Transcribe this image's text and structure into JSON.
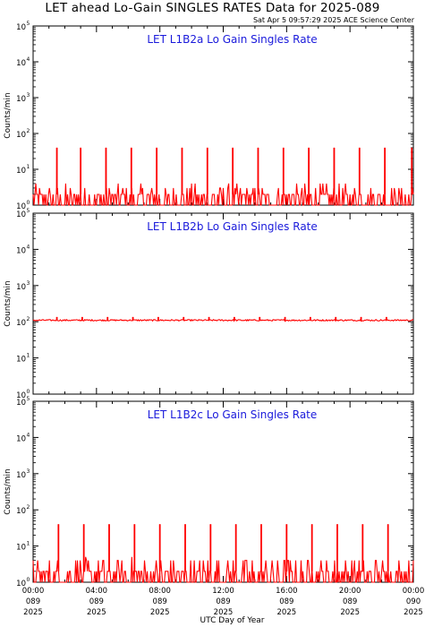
{
  "title": "LET ahead Lo-Gain SINGLES RATES Data for 2025-089",
  "timestamp": "Sat Apr  5 09:57:29 2025 ACE Science Center",
  "colors": {
    "trace": "#ff0000",
    "panel_title": "#1a1adb",
    "axes": "#000000"
  },
  "chart_data": [
    {
      "type": "line",
      "title": "LET L1B2a Lo Gain Singles Rate",
      "ylabel": "Counts/min",
      "xlabel": "",
      "yscale": "log",
      "ylim": [
        1,
        100000
      ],
      "xlim_hours": [
        0,
        24
      ],
      "baseline_range": [
        1,
        3
      ],
      "spike_value": 40,
      "spike_hours": [
        1.5,
        3.0,
        4.6,
        6.2,
        7.8,
        9.4,
        11.0,
        12.6,
        14.2,
        15.8,
        17.4,
        19.0,
        20.6,
        22.2,
        23.9
      ]
    },
    {
      "type": "line",
      "title": "LET L1B2b Lo Gain Singles Rate",
      "ylabel": "Counts/min",
      "xlabel": "",
      "yscale": "log",
      "ylim": [
        1,
        100000
      ],
      "xlim_hours": [
        0,
        24
      ],
      "baseline_range": [
        105,
        115
      ],
      "spike_value": 135,
      "spike_hours": [
        1.5,
        3.1,
        4.7,
        6.3,
        7.9,
        9.5,
        11.1,
        12.7,
        14.3,
        15.9,
        17.5,
        19.1,
        20.7,
        22.3
      ]
    },
    {
      "type": "line",
      "title": "LET L1B2c Lo Gain Singles Rate",
      "ylabel": "Counts/min",
      "xlabel": "UTC Day of Year",
      "yscale": "log",
      "ylim": [
        1,
        100000
      ],
      "xlim_hours": [
        0,
        24
      ],
      "baseline_range": [
        1,
        4
      ],
      "spike_value": 40,
      "spike_hours": [
        1.6,
        3.2,
        4.8,
        6.4,
        8.0,
        9.6,
        11.2,
        12.8,
        14.4,
        16.0,
        17.6,
        19.2,
        20.8,
        22.4
      ]
    }
  ],
  "y_ticks": [
    {
      "base": "10",
      "exp": "0"
    },
    {
      "base": "10",
      "exp": "1"
    },
    {
      "base": "10",
      "exp": "2"
    },
    {
      "base": "10",
      "exp": "3"
    },
    {
      "base": "10",
      "exp": "4"
    },
    {
      "base": "10",
      "exp": "5"
    }
  ],
  "x_ticks": [
    {
      "time": "00:00",
      "doy": "089",
      "year": "2025"
    },
    {
      "time": "04:00",
      "doy": "089",
      "year": "2025"
    },
    {
      "time": "08:00",
      "doy": "089",
      "year": "2025"
    },
    {
      "time": "12:00",
      "doy": "089",
      "year": "2025"
    },
    {
      "time": "16:00",
      "doy": "089",
      "year": "2025"
    },
    {
      "time": "20:00",
      "doy": "089",
      "year": "2025"
    },
    {
      "time": "00:00",
      "doy": "090",
      "year": "2025"
    }
  ],
  "xlabel": "UTC Day of Year"
}
